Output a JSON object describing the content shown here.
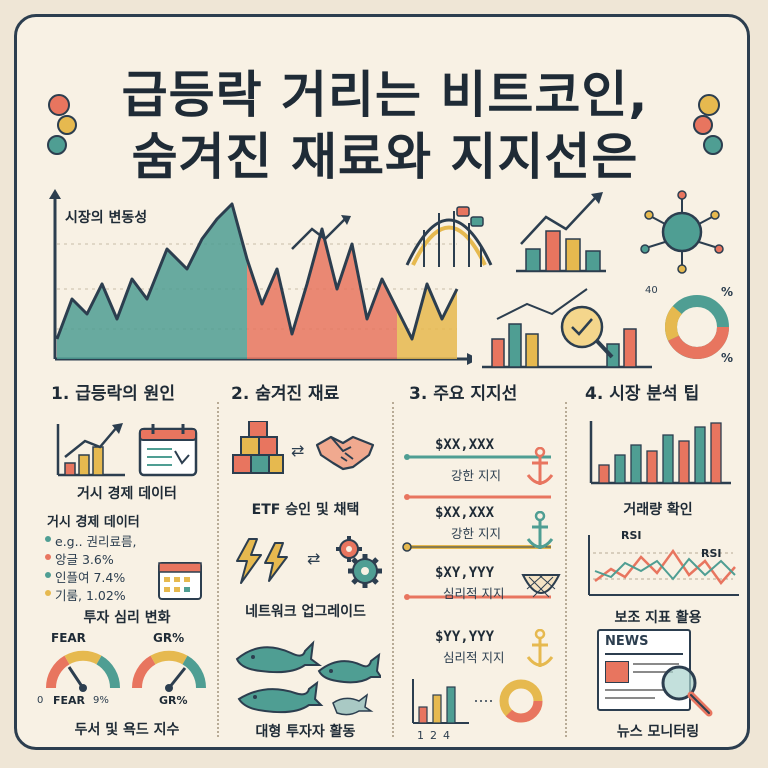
{
  "title": {
    "line1": "급등락 거리는 비트코인,",
    "line2": "숨겨진 재료와 지지선은"
  },
  "hero": {
    "chart_label": "시장의 변동성",
    "pct1": "40",
    "pct2": "%",
    "pct3": "%"
  },
  "sections": {
    "s1": {
      "heading": "1. 급등락의 원인",
      "item1": "거시 경제 데이터",
      "sub_title": "거시 경제 데이터",
      "bullets": [
        "e.g.. 권리료름,",
        "앙글 3.6%",
        "인플여 7.4%",
        "기룸, 1.02%"
      ],
      "item2": "투자 심리 변화",
      "gauge_left_top": "FEAR",
      "gauge_right_top": "GR%",
      "gauge_left_bottom_a": "0",
      "gauge_left_bottom_b": "FEAR",
      "gauge_left_bottom_c": "9%",
      "gauge_right_bottom": "GR%",
      "item3": "두서 및 욕드 지수"
    },
    "s2": {
      "heading": "2. 숨겨진 재료",
      "item1": "ETF 승인 및 채택",
      "item2": "네트워크 업그레이드",
      "item3": "대형 투자자 활동"
    },
    "s3": {
      "heading": "3. 주요 지지선",
      "levels": [
        {
          "price": "$XX,XXX",
          "label": "강한 지지"
        },
        {
          "price": "$XX,XXX",
          "label": "강한 지지"
        },
        {
          "price": "$XY,YYY",
          "label": "심리적 지지"
        },
        {
          "price": "$YY,YYY",
          "label": "심리적 지지"
        }
      ],
      "axis_ticks": [
        "1",
        "2",
        "4"
      ]
    },
    "s4": {
      "heading": "4. 시장 분석 팁",
      "item1": "거래량 확인",
      "rsi_a": "RSI",
      "rsi_b": "RSI",
      "item2": "보조 지표 활용",
      "news_label": "NEWS",
      "item3": "뉴스 모니터링"
    }
  },
  "colors": {
    "teal": "#4f9e93",
    "coral": "#e8755f",
    "mustard": "#e6b94f",
    "navy": "#2c3e4f",
    "cream": "#f8f1e4"
  }
}
